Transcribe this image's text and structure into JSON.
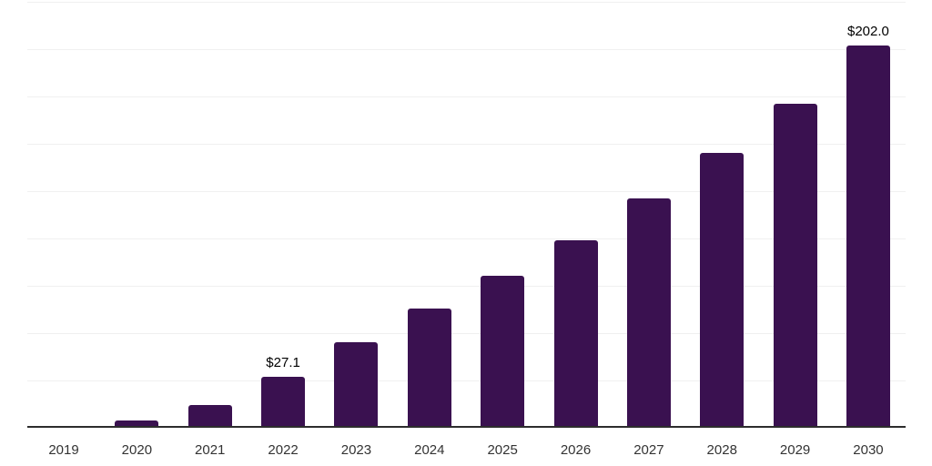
{
  "chart_data": {
    "type": "bar",
    "title": "",
    "xlabel": "",
    "ylabel": "",
    "categories": [
      "2019",
      "2020",
      "2021",
      "2022",
      "2023",
      "2024",
      "2025",
      "2026",
      "2027",
      "2028",
      "2029",
      "2030"
    ],
    "values": [
      0.3,
      3.7,
      12.0,
      27.1,
      45.3,
      62.8,
      80.4,
      99.1,
      121.1,
      145.2,
      171.2,
      202.0
    ],
    "data_labels": [
      "",
      "",
      "",
      "$27.1",
      "",
      "",
      "",
      "",
      "",
      "",
      "",
      "$202.0"
    ],
    "value_unit_prefix": "$",
    "ylim": [
      0,
      225
    ],
    "y_gridline_step": 25,
    "y_axis_tick_labels_visible": false,
    "grid": "horizontal",
    "legend": "none",
    "colors": {
      "bar_fill": "#3A1150",
      "axis_line": "#2d2d2d",
      "gridline": "#f0f0f0",
      "data_label_text": "#000000",
      "tick_label_text": "#333333",
      "background": "#ffffff"
    }
  }
}
